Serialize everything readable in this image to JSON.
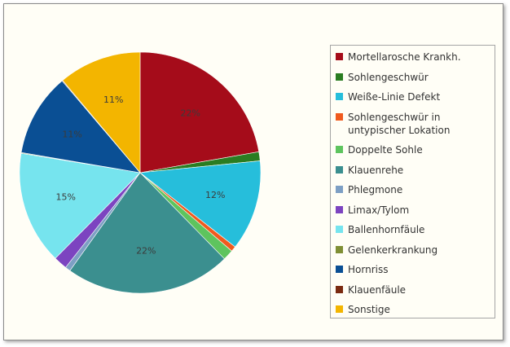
{
  "chart_data": {
    "type": "pie",
    "title": "",
    "legend_position": "right",
    "slices": [
      {
        "name": "Mortellarosche Krankh.",
        "value": 22,
        "label": "22%",
        "color": "#a50c1a"
      },
      {
        "name": "Sohlengeschwür",
        "value": 1.2,
        "label": "",
        "color": "#2a7d22"
      },
      {
        "name": "Weiße-Linie Defekt",
        "value": 12,
        "label": "12%",
        "color": "#26bedb"
      },
      {
        "name": "Sohlengeschwür in untypischer Lokation",
        "value": 0.7,
        "label": "",
        "color": "#f05a1e"
      },
      {
        "name": "Doppelte Sohle",
        "value": 1.4,
        "label": "",
        "color": "#5ec45e"
      },
      {
        "name": "Klauenrehe",
        "value": 22,
        "label": "22%",
        "color": "#3b8f8f"
      },
      {
        "name": "Phlegmone",
        "value": 0.7,
        "label": "",
        "color": "#7d9fc4"
      },
      {
        "name": "Limax/Tylom",
        "value": 1.8,
        "label": "",
        "color": "#7c44c0"
      },
      {
        "name": "Ballenhornfäule",
        "value": 15,
        "label": "15%",
        "color": "#76e4ee"
      },
      {
        "name": "Gelenkerkrankung",
        "value": 0.1,
        "label": "",
        "color": "#7f8f35"
      },
      {
        "name": "Hornriss",
        "value": 11,
        "label": "11%",
        "color": "#0a4f94"
      },
      {
        "name": "Klauenfäule",
        "value": 0.1,
        "label": "",
        "color": "#7a2a10"
      },
      {
        "name": "Sonstige",
        "value": 11,
        "label": "11%",
        "color": "#f3b500"
      }
    ]
  }
}
